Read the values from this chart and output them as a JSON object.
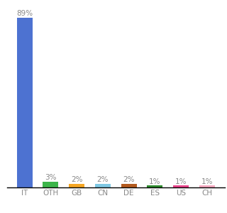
{
  "categories": [
    "IT",
    "OTH",
    "GB",
    "CN",
    "DE",
    "ES",
    "US",
    "CH"
  ],
  "values": [
    89,
    3,
    2,
    2,
    2,
    1,
    1,
    1
  ],
  "bar_colors": [
    "#4d72d1",
    "#3cb54a",
    "#f5a623",
    "#7ec8e3",
    "#b35a1f",
    "#2d8a2d",
    "#e8438a",
    "#f4a8c0"
  ],
  "labels": [
    "89%",
    "3%",
    "2%",
    "2%",
    "2%",
    "1%",
    "1%",
    "1%"
  ],
  "background_color": "#ffffff",
  "label_fontsize": 7.5,
  "tick_fontsize": 7.5,
  "ylim": [
    0,
    95
  ]
}
